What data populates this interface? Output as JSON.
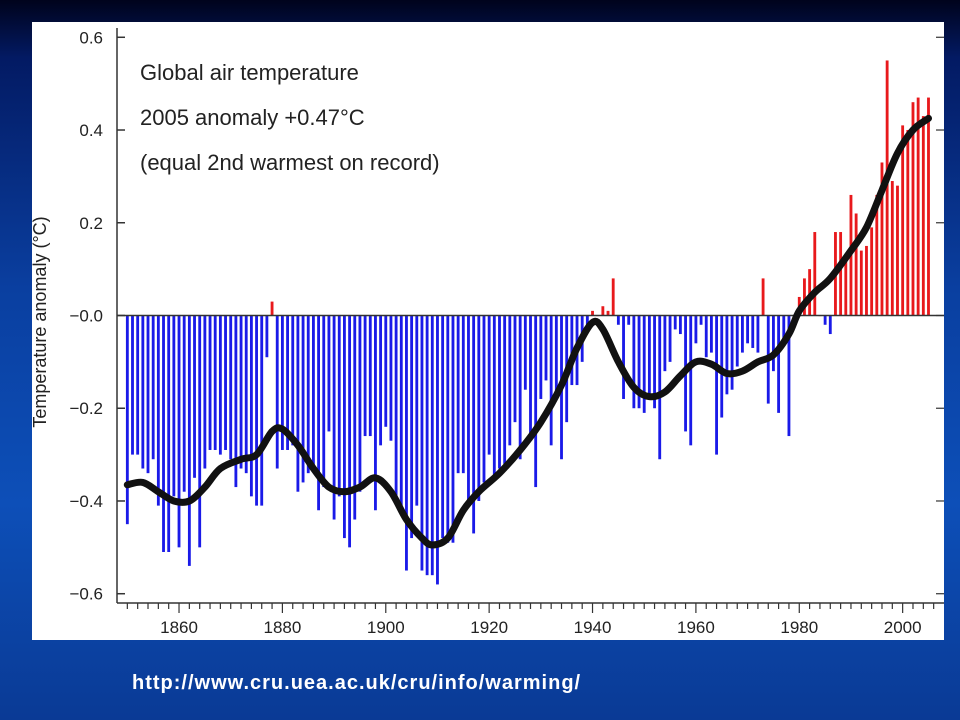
{
  "source_url": "http://www.cru.uea.ac.uk/cru/info/warming/",
  "colors": {
    "warm_bar": "#e8191c",
    "cool_bar": "#1a1ae8",
    "smooth_line": "#111111",
    "axis": "#333333"
  },
  "chart_data": {
    "type": "bar",
    "ylabel": "Temperature anomaly (°C)",
    "xlabel": "",
    "annotations": [
      "Global air temperature",
      "2005 anomaly +0.47°C",
      "(equal 2nd warmest on record)"
    ],
    "xlim": [
      1848,
      2008
    ],
    "ylim": [
      -0.62,
      0.62
    ],
    "x_ticks": [
      1860,
      1880,
      1900,
      1920,
      1940,
      1960,
      1980,
      2000
    ],
    "y_ticks": [
      {
        "v": 0.6,
        "label": "0.6"
      },
      {
        "v": 0.4,
        "label": "0.4"
      },
      {
        "v": 0.2,
        "label": "0.2"
      },
      {
        "v": 0.0,
        "label": "−0.0"
      },
      {
        "v": -0.2,
        "label": "−0.2"
      },
      {
        "v": -0.4,
        "label": "−0.4"
      },
      {
        "v": -0.6,
        "label": "−0.6"
      }
    ],
    "start_year": 1850,
    "annual_anomaly": [
      -0.45,
      -0.3,
      -0.3,
      -0.33,
      -0.34,
      -0.31,
      -0.41,
      -0.51,
      -0.51,
      -0.39,
      -0.5,
      -0.38,
      -0.54,
      -0.35,
      -0.5,
      -0.33,
      -0.29,
      -0.29,
      -0.3,
      -0.29,
      -0.31,
      -0.37,
      -0.33,
      -0.34,
      -0.39,
      -0.41,
      -0.41,
      -0.09,
      0.03,
      -0.33,
      -0.29,
      -0.29,
      -0.28,
      -0.38,
      -0.36,
      -0.34,
      -0.33,
      -0.42,
      -0.37,
      -0.25,
      -0.44,
      -0.39,
      -0.48,
      -0.5,
      -0.44,
      -0.38,
      -0.26,
      -0.26,
      -0.42,
      -0.28,
      -0.24,
      -0.27,
      -0.4,
      -0.41,
      -0.55,
      -0.48,
      -0.41,
      -0.55,
      -0.56,
      -0.56,
      -0.58,
      -0.48,
      -0.49,
      -0.49,
      -0.34,
      -0.34,
      -0.41,
      -0.47,
      -0.4,
      -0.36,
      -0.3,
      -0.35,
      -0.33,
      -0.32,
      -0.28,
      -0.23,
      -0.31,
      -0.16,
      -0.26,
      -0.37,
      -0.18,
      -0.14,
      -0.28,
      -0.18,
      -0.31,
      -0.23,
      -0.15,
      -0.15,
      -0.1,
      -0.03,
      0.01,
      0.0,
      0.02,
      0.01,
      0.08,
      -0.02,
      -0.18,
      -0.02,
      -0.2,
      -0.2,
      -0.21,
      -0.17,
      -0.2,
      -0.31,
      -0.12,
      -0.1,
      -0.03,
      -0.04,
      -0.25,
      -0.28,
      -0.06,
      -0.02,
      -0.09,
      -0.08,
      -0.3,
      -0.22,
      -0.17,
      -0.16,
      -0.11,
      -0.08,
      -0.06,
      -0.07,
      -0.08,
      0.08,
      -0.19,
      -0.12,
      -0.21,
      -0.05,
      -0.26,
      -0.02,
      0.04,
      0.08,
      0.1,
      0.18,
      0.0,
      -0.02,
      -0.04,
      0.18,
      0.18,
      0.12,
      0.26,
      0.22,
      0.14,
      0.15,
      0.19,
      0.26,
      0.33,
      0.55,
      0.29,
      0.28,
      0.41,
      0.4,
      0.46,
      0.47,
      0.43,
      0.47
    ],
    "smoothed": [
      {
        "x": 1850,
        "y": -0.365
      },
      {
        "x": 1853,
        "y": -0.36
      },
      {
        "x": 1856,
        "y": -0.38
      },
      {
        "x": 1859,
        "y": -0.4
      },
      {
        "x": 1862,
        "y": -0.4
      },
      {
        "x": 1865,
        "y": -0.37
      },
      {
        "x": 1868,
        "y": -0.33
      },
      {
        "x": 1872,
        "y": -0.31
      },
      {
        "x": 1875,
        "y": -0.3
      },
      {
        "x": 1878,
        "y": -0.25
      },
      {
        "x": 1880,
        "y": -0.245
      },
      {
        "x": 1883,
        "y": -0.28
      },
      {
        "x": 1886,
        "y": -0.33
      },
      {
        "x": 1889,
        "y": -0.37
      },
      {
        "x": 1892,
        "y": -0.38
      },
      {
        "x": 1895,
        "y": -0.37
      },
      {
        "x": 1898,
        "y": -0.35
      },
      {
        "x": 1901,
        "y": -0.38
      },
      {
        "x": 1904,
        "y": -0.44
      },
      {
        "x": 1907,
        "y": -0.48
      },
      {
        "x": 1909,
        "y": -0.495
      },
      {
        "x": 1912,
        "y": -0.48
      },
      {
        "x": 1915,
        "y": -0.42
      },
      {
        "x": 1918,
        "y": -0.38
      },
      {
        "x": 1922,
        "y": -0.34
      },
      {
        "x": 1926,
        "y": -0.29
      },
      {
        "x": 1930,
        "y": -0.23
      },
      {
        "x": 1934,
        "y": -0.15
      },
      {
        "x": 1937,
        "y": -0.07
      },
      {
        "x": 1940,
        "y": -0.015
      },
      {
        "x": 1942,
        "y": -0.03
      },
      {
        "x": 1945,
        "y": -0.1
      },
      {
        "x": 1948,
        "y": -0.155
      },
      {
        "x": 1951,
        "y": -0.175
      },
      {
        "x": 1954,
        "y": -0.165
      },
      {
        "x": 1957,
        "y": -0.13
      },
      {
        "x": 1960,
        "y": -0.1
      },
      {
        "x": 1963,
        "y": -0.105
      },
      {
        "x": 1966,
        "y": -0.125
      },
      {
        "x": 1969,
        "y": -0.12
      },
      {
        "x": 1972,
        "y": -0.1
      },
      {
        "x": 1975,
        "y": -0.085
      },
      {
        "x": 1978,
        "y": -0.04
      },
      {
        "x": 1980,
        "y": 0.01
      },
      {
        "x": 1983,
        "y": 0.05
      },
      {
        "x": 1986,
        "y": 0.08
      },
      {
        "x": 1990,
        "y": 0.14
      },
      {
        "x": 1993,
        "y": 0.19
      },
      {
        "x": 1996,
        "y": 0.27
      },
      {
        "x": 1999,
        "y": 0.35
      },
      {
        "x": 2002,
        "y": 0.4
      },
      {
        "x": 2005,
        "y": 0.425
      }
    ]
  }
}
